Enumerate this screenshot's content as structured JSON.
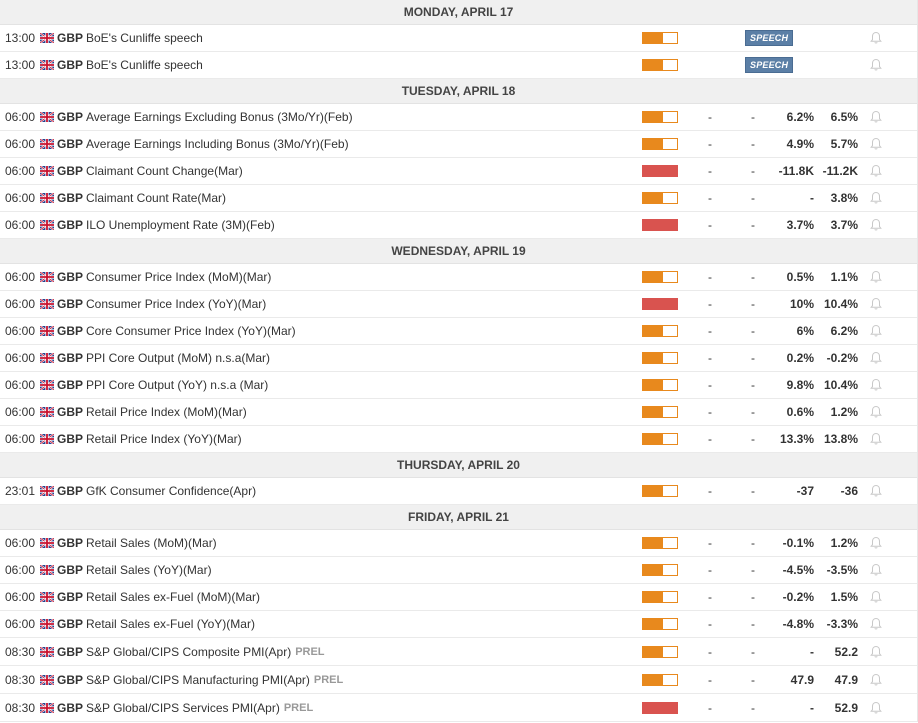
{
  "colors": {
    "medium": "#e8891d",
    "high": "#d9534f",
    "speech_badge": "#5b7fa6"
  },
  "days": [
    {
      "header": "MONDAY, APRIL 17",
      "events": [
        {
          "time": "13:00",
          "ccy": "GBP",
          "name": "BoE's Cunliffe speech",
          "impact": "medium",
          "speech": "SPEECH"
        },
        {
          "time": "13:00",
          "ccy": "GBP",
          "name": "BoE's Cunliffe speech",
          "impact": "medium",
          "speech": "SPEECH"
        }
      ]
    },
    {
      "header": "TUESDAY, APRIL 18",
      "events": [
        {
          "time": "06:00",
          "ccy": "GBP",
          "name": "Average Earnings Excluding Bonus (3Mo/Yr)(Feb)",
          "impact": "medium",
          "actual": "-",
          "dev": "-",
          "prev": "6.2%",
          "cons": "6.5%"
        },
        {
          "time": "06:00",
          "ccy": "GBP",
          "name": "Average Earnings Including Bonus (3Mo/Yr)(Feb)",
          "impact": "medium",
          "actual": "-",
          "dev": "-",
          "prev": "4.9%",
          "cons": "5.7%"
        },
        {
          "time": "06:00",
          "ccy": "GBP",
          "name": "Claimant Count Change(Mar)",
          "impact": "high",
          "actual": "-",
          "dev": "-",
          "prev": "-11.8K",
          "cons": "-11.2K"
        },
        {
          "time": "06:00",
          "ccy": "GBP",
          "name": "Claimant Count Rate(Mar)",
          "impact": "medium",
          "actual": "-",
          "dev": "-",
          "prev": "-",
          "cons": "3.8%"
        },
        {
          "time": "06:00",
          "ccy": "GBP",
          "name": "ILO Unemployment Rate (3M)(Feb)",
          "impact": "high",
          "actual": "-",
          "dev": "-",
          "prev": "3.7%",
          "cons": "3.7%"
        }
      ]
    },
    {
      "header": "WEDNESDAY, APRIL 19",
      "events": [
        {
          "time": "06:00",
          "ccy": "GBP",
          "name": "Consumer Price Index (MoM)(Mar)",
          "impact": "medium",
          "actual": "-",
          "dev": "-",
          "prev": "0.5%",
          "cons": "1.1%"
        },
        {
          "time": "06:00",
          "ccy": "GBP",
          "name": "Consumer Price Index (YoY)(Mar)",
          "impact": "high",
          "actual": "-",
          "dev": "-",
          "prev": "10%",
          "cons": "10.4%"
        },
        {
          "time": "06:00",
          "ccy": "GBP",
          "name": "Core Consumer Price Index (YoY)(Mar)",
          "impact": "medium",
          "actual": "-",
          "dev": "-",
          "prev": "6%",
          "cons": "6.2%"
        },
        {
          "time": "06:00",
          "ccy": "GBP",
          "name": "PPI Core Output (MoM) n.s.a(Mar)",
          "impact": "medium",
          "actual": "-",
          "dev": "-",
          "prev": "0.2%",
          "cons": "-0.2%"
        },
        {
          "time": "06:00",
          "ccy": "GBP",
          "name": "PPI Core Output (YoY) n.s.a (Mar)",
          "impact": "medium",
          "actual": "-",
          "dev": "-",
          "prev": "9.8%",
          "cons": "10.4%"
        },
        {
          "time": "06:00",
          "ccy": "GBP",
          "name": "Retail Price Index (MoM)(Mar)",
          "impact": "medium",
          "actual": "-",
          "dev": "-",
          "prev": "0.6%",
          "cons": "1.2%"
        },
        {
          "time": "06:00",
          "ccy": "GBP",
          "name": "Retail Price Index (YoY)(Mar)",
          "impact": "medium",
          "actual": "-",
          "dev": "-",
          "prev": "13.3%",
          "cons": "13.8%"
        }
      ]
    },
    {
      "header": "THURSDAY, APRIL 20",
      "events": [
        {
          "time": "23:01",
          "ccy": "GBP",
          "name": "GfK Consumer Confidence(Apr)",
          "impact": "medium",
          "actual": "-",
          "dev": "-",
          "prev": "-37",
          "cons": "-36"
        }
      ]
    },
    {
      "header": "FRIDAY, APRIL 21",
      "events": [
        {
          "time": "06:00",
          "ccy": "GBP",
          "name": "Retail Sales (MoM)(Mar)",
          "impact": "medium",
          "actual": "-",
          "dev": "-",
          "prev": "-0.1%",
          "cons": "1.2%"
        },
        {
          "time": "06:00",
          "ccy": "GBP",
          "name": "Retail Sales (YoY)(Mar)",
          "impact": "medium",
          "actual": "-",
          "dev": "-",
          "prev": "-4.5%",
          "cons": "-3.5%"
        },
        {
          "time": "06:00",
          "ccy": "GBP",
          "name": "Retail Sales ex-Fuel (MoM)(Mar)",
          "impact": "medium",
          "actual": "-",
          "dev": "-",
          "prev": "-0.2%",
          "cons": "1.5%"
        },
        {
          "time": "06:00",
          "ccy": "GBP",
          "name": "Retail Sales ex-Fuel (YoY)(Mar)",
          "impact": "medium",
          "actual": "-",
          "dev": "-",
          "prev": "-4.8%",
          "cons": "-3.3%"
        },
        {
          "time": "08:30",
          "ccy": "GBP",
          "name": "S&P Global/CIPS Composite PMI(Apr)",
          "tag": "PREL",
          "impact": "medium",
          "actual": "-",
          "dev": "-",
          "prev": "-",
          "cons": "52.2"
        },
        {
          "time": "08:30",
          "ccy": "GBP",
          "name": "S&P Global/CIPS Manufacturing PMI(Apr)",
          "tag": "PREL",
          "impact": "medium",
          "actual": "-",
          "dev": "-",
          "prev": "47.9",
          "cons": "47.9"
        },
        {
          "time": "08:30",
          "ccy": "GBP",
          "name": "S&P Global/CIPS Services PMI(Apr)",
          "tag": "PREL",
          "impact": "high",
          "actual": "-",
          "dev": "-",
          "prev": "-",
          "cons": "52.9"
        }
      ]
    }
  ]
}
